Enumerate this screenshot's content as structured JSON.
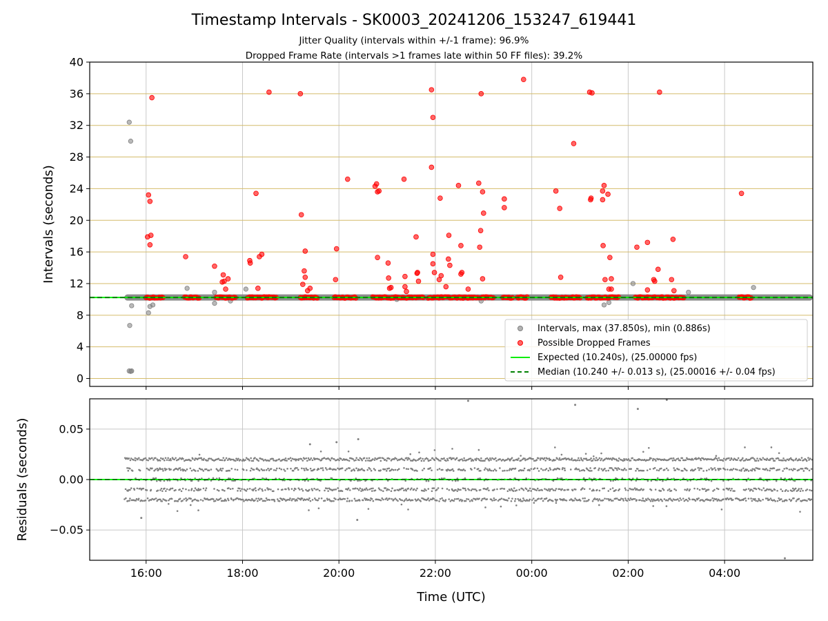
{
  "chart_data": {
    "title": "Timestamp Intervals - SK0003_20241206_153247_619441",
    "subtitle_1": "Jitter Quality (intervals within +/-1 frame): 96.9%",
    "subtitle_2": "Dropped Frame Rate (intervals >1 frames late within 50 FF files): 39.2%",
    "xlabel": "Time (UTC)",
    "x_ticks": [
      "16:00",
      "18:00",
      "20:00",
      "22:00",
      "00:00",
      "02:00",
      "04:00"
    ],
    "x_range_hours": [
      14.83,
      29.83
    ],
    "x_tick_hours": [
      16,
      18,
      20,
      22,
      24,
      26,
      28
    ],
    "top_panel": {
      "type": "scatter",
      "ylabel": "Intervals (seconds)",
      "ylim": [
        -1,
        40
      ],
      "y_ticks": [
        0,
        4,
        8,
        12,
        16,
        20,
        24,
        28,
        32,
        36,
        40
      ],
      "grid": true,
      "legend_position": "lower-right",
      "legend": {
        "intervals": "Intervals, max (37.850s), min (0.886s)",
        "dropped": "Possible Dropped Frames",
        "expected": "Expected (10.240s), (25.00000 fps)",
        "median": "Median (10.240 +/- 0.013 s), (25.00016 +/- 0.04 fps)"
      },
      "expected_value": 10.24,
      "median_value": 10.24,
      "baseline_range_hours": [
        15.55,
        29.83
      ],
      "gray_outliers": [
        [
          15.65,
          32.4
        ],
        [
          15.68,
          30.0
        ],
        [
          15.66,
          6.7
        ],
        [
          15.65,
          0.95
        ],
        [
          15.68,
          0.9
        ],
        [
          15.7,
          0.95
        ],
        [
          15.7,
          9.2
        ],
        [
          16.05,
          8.3
        ],
        [
          16.08,
          9.1
        ],
        [
          16.14,
          9.3
        ],
        [
          16.85,
          11.4
        ],
        [
          17.42,
          9.5
        ],
        [
          17.42,
          10.9
        ],
        [
          17.75,
          9.8
        ],
        [
          18.07,
          11.3
        ],
        [
          21.2,
          10.0
        ],
        [
          22.95,
          9.8
        ],
        [
          25.5,
          9.3
        ],
        [
          25.6,
          9.6
        ],
        [
          26.1,
          12.0
        ],
        [
          27.25,
          10.9
        ],
        [
          28.6,
          11.5
        ]
      ],
      "red_points": [
        [
          16.12,
          35.5
        ],
        [
          16.05,
          23.2
        ],
        [
          16.08,
          22.4
        ],
        [
          16.03,
          17.9
        ],
        [
          16.1,
          18.1
        ],
        [
          16.08,
          16.9
        ],
        [
          16.82,
          15.4
        ],
        [
          17.42,
          14.2
        ],
        [
          17.6,
          13.1
        ],
        [
          17.62,
          12.3
        ],
        [
          17.7,
          12.6
        ],
        [
          17.65,
          11.3
        ],
        [
          17.58,
          12.2
        ],
        [
          18.15,
          14.9
        ],
        [
          18.16,
          14.6
        ],
        [
          18.28,
          23.4
        ],
        [
          18.35,
          15.4
        ],
        [
          18.4,
          15.7
        ],
        [
          18.55,
          36.2
        ],
        [
          18.32,
          11.4
        ],
        [
          19.2,
          36.0
        ],
        [
          19.22,
          20.7
        ],
        [
          19.25,
          11.9
        ],
        [
          19.3,
          16.1
        ],
        [
          19.28,
          13.6
        ],
        [
          19.3,
          12.8
        ],
        [
          19.35,
          11.1
        ],
        [
          19.4,
          11.4
        ],
        [
          19.95,
          16.4
        ],
        [
          19.93,
          12.5
        ],
        [
          20.18,
          25.2
        ],
        [
          20.75,
          24.3
        ],
        [
          20.78,
          24.6
        ],
        [
          20.8,
          23.6
        ],
        [
          20.83,
          23.7
        ],
        [
          20.8,
          15.3
        ],
        [
          21.02,
          14.6
        ],
        [
          21.03,
          12.7
        ],
        [
          21.05,
          11.4
        ],
        [
          21.08,
          11.5
        ],
        [
          21.35,
          25.2
        ],
        [
          21.37,
          12.9
        ],
        [
          21.37,
          11.6
        ],
        [
          21.4,
          11.0
        ],
        [
          21.6,
          17.9
        ],
        [
          21.62,
          13.3
        ],
        [
          21.63,
          13.4
        ],
        [
          21.65,
          12.3
        ],
        [
          21.92,
          36.5
        ],
        [
          21.95,
          33.0
        ],
        [
          21.92,
          26.7
        ],
        [
          21.95,
          15.7
        ],
        [
          21.95,
          14.5
        ],
        [
          21.98,
          13.4
        ],
        [
          22.1,
          22.8
        ],
        [
          22.08,
          12.5
        ],
        [
          22.12,
          13.0
        ],
        [
          22.22,
          11.6
        ],
        [
          22.28,
          18.1
        ],
        [
          22.27,
          15.1
        ],
        [
          22.3,
          14.3
        ],
        [
          22.48,
          24.4
        ],
        [
          22.53,
          16.8
        ],
        [
          22.55,
          13.4
        ],
        [
          22.53,
          13.2
        ],
        [
          22.68,
          11.3
        ],
        [
          22.9,
          24.7
        ],
        [
          22.92,
          16.6
        ],
        [
          22.94,
          18.7
        ],
        [
          22.95,
          36.0
        ],
        [
          22.98,
          23.6
        ],
        [
          23.0,
          20.9
        ],
        [
          22.98,
          12.6
        ],
        [
          23.43,
          22.7
        ],
        [
          23.43,
          21.6
        ],
        [
          23.83,
          37.8
        ],
        [
          24.5,
          23.7
        ],
        [
          24.58,
          21.5
        ],
        [
          24.6,
          12.8
        ],
        [
          24.87,
          29.7
        ],
        [
          25.2,
          36.2
        ],
        [
          25.25,
          36.1
        ],
        [
          25.23,
          22.8
        ],
        [
          25.22,
          22.6
        ],
        [
          25.47,
          23.7
        ],
        [
          25.5,
          24.4
        ],
        [
          25.47,
          22.6
        ],
        [
          25.58,
          23.3
        ],
        [
          25.48,
          16.8
        ],
        [
          25.52,
          12.5
        ],
        [
          25.62,
          15.3
        ],
        [
          25.65,
          12.6
        ],
        [
          25.6,
          11.3
        ],
        [
          25.65,
          11.3
        ],
        [
          26.18,
          16.6
        ],
        [
          26.4,
          17.2
        ],
        [
          26.4,
          11.2
        ],
        [
          26.53,
          12.5
        ],
        [
          26.55,
          12.3
        ],
        [
          26.62,
          13.8
        ],
        [
          26.65,
          36.2
        ],
        [
          26.9,
          12.5
        ],
        [
          26.93,
          17.6
        ],
        [
          26.95,
          11.1
        ],
        [
          28.35,
          23.4
        ]
      ],
      "red_baseline_segments": [
        [
          16.0,
          16.35
        ],
        [
          16.8,
          17.1
        ],
        [
          17.45,
          17.85
        ],
        [
          18.1,
          18.7
        ],
        [
          19.2,
          19.55
        ],
        [
          19.9,
          20.35
        ],
        [
          20.7,
          21.35
        ],
        [
          21.4,
          21.75
        ],
        [
          21.85,
          22.9
        ],
        [
          22.95,
          23.2
        ],
        [
          23.4,
          23.6
        ],
        [
          23.7,
          23.9
        ],
        [
          24.4,
          24.75
        ],
        [
          24.8,
          25.0
        ],
        [
          25.15,
          25.8
        ],
        [
          26.15,
          26.55
        ],
        [
          26.6,
          27.0
        ],
        [
          27.05,
          27.15
        ],
        [
          28.3,
          28.55
        ]
      ]
    },
    "bottom_panel": {
      "type": "scatter",
      "ylabel": "Residuals (seconds)",
      "ylim": [
        -0.08,
        0.08
      ],
      "y_ticks": [
        0.05,
        0.0,
        -0.05
      ],
      "y_tick_labels": [
        "0.05",
        "0.00",
        "−0.05"
      ],
      "grid": true,
      "zero_line": 0.0,
      "levels": [
        0.02,
        0.01,
        0.0,
        -0.01,
        -0.02
      ],
      "level_density": [
        1.0,
        0.7,
        0.4,
        0.7,
        0.9
      ],
      "outliers": [
        [
          22.68,
          0.078
        ],
        [
          24.9,
          0.074
        ],
        [
          26.2,
          0.07
        ],
        [
          26.8,
          0.079
        ],
        [
          29.25,
          -0.078
        ],
        [
          15.9,
          -0.038
        ],
        [
          20.4,
          0.04
        ],
        [
          20.38,
          -0.04
        ],
        [
          19.4,
          0.035
        ],
        [
          19.95,
          0.037
        ]
      ]
    },
    "colors": {
      "intervals": "#808080",
      "dropped": "#ff0000",
      "expected": "#00ee00",
      "median": "#008000",
      "ygrid_top": "#d4bb6a",
      "grid": "#c8c8c8"
    }
  }
}
